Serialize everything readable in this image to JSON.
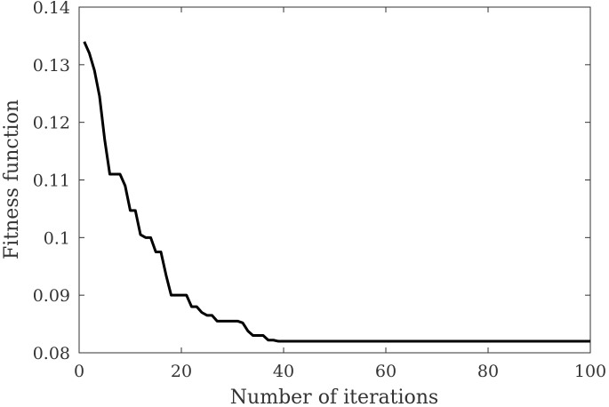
{
  "chart_data": {
    "type": "line",
    "title": "",
    "xlabel": "Number of iterations",
    "ylabel": "Fitness function",
    "xlim": [
      0,
      100
    ],
    "ylim": [
      0.08,
      0.14
    ],
    "xticks": [
      0,
      20,
      40,
      60,
      80,
      100
    ],
    "yticks": [
      0.08,
      0.09,
      0.1,
      0.11,
      0.12,
      0.13,
      0.14
    ],
    "xtick_labels": [
      "0",
      "20",
      "40",
      "60",
      "80",
      "100"
    ],
    "ytick_labels": [
      "0.08",
      "0.09",
      "0.1",
      "0.11",
      "0.12",
      "0.13",
      "0.14"
    ],
    "grid": false,
    "line_color": "#000000",
    "series": [
      {
        "x": [
          1,
          2,
          3,
          4,
          5,
          6,
          7,
          8,
          9,
          10,
          11,
          12,
          13,
          14,
          15,
          16,
          17,
          18,
          19,
          20,
          21,
          22,
          23,
          24,
          25,
          26,
          27,
          28,
          29,
          30,
          31,
          32,
          33,
          34,
          35,
          36,
          37,
          38,
          39,
          40,
          100
        ],
        "y": [
          0.134,
          0.132,
          0.129,
          0.1245,
          0.117,
          0.111,
          0.111,
          0.111,
          0.109,
          0.1047,
          0.1047,
          0.1005,
          0.1,
          0.1,
          0.0975,
          0.0975,
          0.0935,
          0.09,
          0.09,
          0.09,
          0.09,
          0.088,
          0.088,
          0.087,
          0.0865,
          0.0865,
          0.0855,
          0.0855,
          0.0855,
          0.0855,
          0.0855,
          0.0852,
          0.0838,
          0.083,
          0.083,
          0.083,
          0.0822,
          0.0822,
          0.082,
          0.082,
          0.082
        ]
      }
    ]
  }
}
